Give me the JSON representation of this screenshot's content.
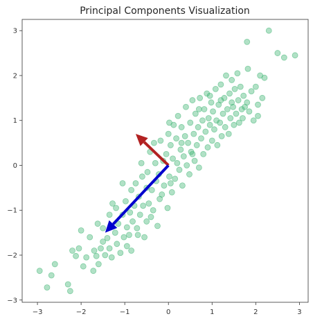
{
  "chart_data": {
    "type": "scatter",
    "title": "Principal Components Visualization",
    "xlabel": "",
    "ylabel": "",
    "xlim": [
      -3.35,
      3.2
    ],
    "ylim": [
      -3.05,
      3.25
    ],
    "xticks": [
      -3,
      -2,
      -1,
      0,
      1,
      2,
      3
    ],
    "yticks": [
      -3,
      -2,
      -1,
      0,
      1,
      2,
      3
    ],
    "grid": false,
    "point_color": "#3cb371",
    "points": [
      [
        -2.95,
        -2.35
      ],
      [
        -2.78,
        -2.72
      ],
      [
        -2.68,
        -2.45
      ],
      [
        -2.6,
        -2.2
      ],
      [
        -2.3,
        -2.65
      ],
      [
        -2.25,
        -2.8
      ],
      [
        -2.12,
        -2.02
      ],
      [
        -2.05,
        -1.85
      ],
      [
        -1.95,
        -2.25
      ],
      [
        -1.88,
        -2.05
      ],
      [
        -1.8,
        -1.6
      ],
      [
        -1.72,
        -2.35
      ],
      [
        -1.65,
        -2.02
      ],
      [
        -1.62,
        -1.3
      ],
      [
        -1.55,
        -1.85
      ],
      [
        -1.5,
        -1.4
      ],
      [
        -1.45,
        -2.0
      ],
      [
        -1.4,
        -1.62
      ],
      [
        -1.35,
        -1.85
      ],
      [
        -1.3,
        -2.05
      ],
      [
        -1.28,
        -0.85
      ],
      [
        -1.22,
        -1.5
      ],
      [
        -1.18,
        -1.75
      ],
      [
        -1.15,
        -1.3
      ],
      [
        -1.1,
        -1.95
      ],
      [
        -1.05,
        -1.1
      ],
      [
        -1.02,
        -1.6
      ],
      [
        -0.98,
        -0.8
      ],
      [
        -0.95,
        -1.38
      ],
      [
        -0.9,
        -1.55
      ],
      [
        -0.88,
        -1.05
      ],
      [
        -0.85,
        -0.55
      ],
      [
        -0.82,
        -1.25
      ],
      [
        -0.78,
        -0.9
      ],
      [
        -0.75,
        -0.4
      ],
      [
        -0.72,
        -1.4
      ],
      [
        -0.68,
        -0.7
      ],
      [
        -0.65,
        -1.1
      ],
      [
        -0.6,
        -0.25
      ],
      [
        -0.58,
        -0.9
      ],
      [
        -0.55,
        -1.6
      ],
      [
        -0.5,
        -0.5
      ],
      [
        -0.48,
        -0.15
      ],
      [
        -0.45,
        -0.85
      ],
      [
        -0.42,
        0.3
      ],
      [
        -0.38,
        -0.55
      ],
      [
        -0.35,
        -1.0
      ],
      [
        -0.3,
        0.05
      ],
      [
        -0.28,
        -0.35
      ],
      [
        -0.25,
        -1.35
      ],
      [
        -0.22,
        -0.2
      ],
      [
        -0.18,
        0.55
      ],
      [
        -0.15,
        -0.65
      ],
      [
        -0.12,
        0.1
      ],
      [
        -0.1,
        -0.45
      ],
      [
        -0.05,
        0.25
      ],
      [
        -0.02,
        -0.95
      ],
      [
        0.0,
        0.7
      ],
      [
        0.02,
        -0.25
      ],
      [
        0.05,
        0.45
      ],
      [
        0.08,
        -0.6
      ],
      [
        0.1,
        0.15
      ],
      [
        0.12,
        0.9
      ],
      [
        0.15,
        -0.3
      ],
      [
        0.18,
        0.6
      ],
      [
        0.2,
        0.05
      ],
      [
        0.22,
        1.1
      ],
      [
        0.25,
        -0.1
      ],
      [
        0.28,
        0.35
      ],
      [
        0.3,
        0.85
      ],
      [
        0.32,
        -0.45
      ],
      [
        0.35,
        0.2
      ],
      [
        0.38,
        0.65
      ],
      [
        0.4,
        1.3
      ],
      [
        0.42,
        0.0
      ],
      [
        0.45,
        0.5
      ],
      [
        0.48,
        -0.2
      ],
      [
        0.5,
        0.95
      ],
      [
        0.52,
        0.3
      ],
      [
        0.55,
        1.45
      ],
      [
        0.58,
        0.7
      ],
      [
        0.6,
        0.1
      ],
      [
        0.62,
        1.15
      ],
      [
        0.65,
        0.45
      ],
      [
        0.68,
        0.85
      ],
      [
        0.7,
        -0.05
      ],
      [
        0.72,
        1.5
      ],
      [
        0.75,
        0.6
      ],
      [
        0.78,
        1.0
      ],
      [
        0.8,
        0.25
      ],
      [
        0.82,
        1.25
      ],
      [
        0.85,
        0.75
      ],
      [
        0.88,
        1.6
      ],
      [
        0.9,
        0.4
      ],
      [
        0.92,
        1.05
      ],
      [
        0.95,
        0.9
      ],
      [
        0.98,
        1.4
      ],
      [
        1.0,
        0.55
      ],
      [
        1.02,
        1.2
      ],
      [
        1.05,
        0.8
      ],
      [
        1.08,
        1.7
      ],
      [
        1.1,
        1.0
      ],
      [
        1.12,
        0.45
      ],
      [
        1.15,
        1.35
      ],
      [
        1.18,
        0.95
      ],
      [
        1.2,
        1.8
      ],
      [
        1.22,
        0.65
      ],
      [
        1.25,
        1.15
      ],
      [
        1.28,
        1.5
      ],
      [
        1.3,
        0.85
      ],
      [
        1.32,
        2.0
      ],
      [
        1.35,
        1.25
      ],
      [
        1.38,
        0.7
      ],
      [
        1.4,
        1.6
      ],
      [
        1.42,
        1.05
      ],
      [
        1.45,
        1.9
      ],
      [
        1.48,
        1.3
      ],
      [
        1.5,
        0.9
      ],
      [
        1.52,
        1.7
      ],
      [
        1.55,
        1.15
      ],
      [
        1.58,
        2.05
      ],
      [
        1.6,
        1.45
      ],
      [
        1.62,
        0.95
      ],
      [
        1.65,
        1.75
      ],
      [
        1.68,
        1.25
      ],
      [
        1.7,
        1.05
      ],
      [
        1.72,
        1.55
      ],
      [
        1.75,
        1.3
      ],
      [
        1.8,
        1.4
      ],
      [
        1.82,
        2.15
      ],
      [
        1.85,
        1.2
      ],
      [
        1.9,
        1.65
      ],
      [
        1.95,
        1.0
      ],
      [
        2.0,
        1.75
      ],
      [
        2.05,
        1.35
      ],
      [
        2.1,
        2.0
      ],
      [
        2.15,
        1.5
      ],
      [
        2.2,
        1.95
      ],
      [
        1.8,
        2.75
      ],
      [
        2.3,
        3.0
      ],
      [
        2.5,
        2.5
      ],
      [
        2.65,
        2.4
      ],
      [
        2.9,
        2.45
      ],
      [
        2.05,
        1.1
      ],
      [
        -2.2,
        -1.9
      ],
      [
        -2.0,
        -1.45
      ],
      [
        -1.7,
        -1.9
      ],
      [
        -1.5,
        -1.7
      ],
      [
        -1.2,
        -0.95
      ],
      [
        -0.95,
        -1.8
      ],
      [
        -0.7,
        -1.55
      ],
      [
        -0.4,
        -1.15
      ],
      [
        -0.2,
        -0.75
      ],
      [
        0.05,
        -0.4
      ],
      [
        0.3,
        0.5
      ],
      [
        0.55,
        0.25
      ],
      [
        0.7,
        1.25
      ],
      [
        0.95,
        1.55
      ],
      [
        1.2,
        1.45
      ],
      [
        1.45,
        1.4
      ],
      [
        -1.05,
        -0.4
      ],
      [
        -0.62,
        0.05
      ],
      [
        -0.33,
        0.5
      ],
      [
        0.02,
        0.95
      ],
      [
        -1.35,
        -1.1
      ],
      [
        -1.6,
        -2.2
      ],
      [
        -0.85,
        -1.9
      ],
      [
        -0.5,
        -1.25
      ]
    ],
    "vectors": [
      {
        "from": [
          0,
          0
        ],
        "to": [
          -0.75,
          0.7
        ],
        "color": "#b22222"
      },
      {
        "from": [
          0,
          0
        ],
        "to": [
          -1.45,
          -1.5
        ],
        "color": "#0000cd"
      }
    ]
  }
}
